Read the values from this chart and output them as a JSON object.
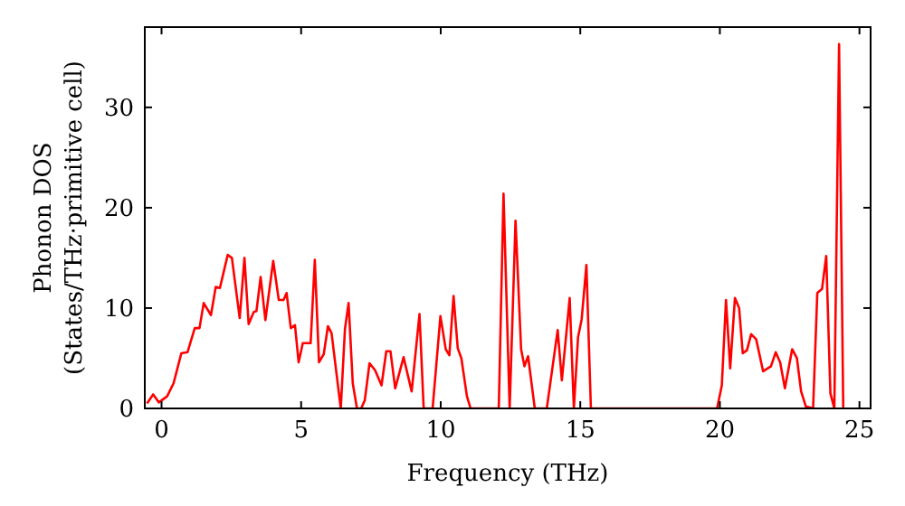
{
  "chart_data": {
    "type": "line",
    "xlabel": "Frequency (THz)",
    "ylabel": "Phonon DOS\n(States/THz·primitive cell)",
    "xlim": [
      -0.6,
      25.4
    ],
    "ylim": [
      0,
      38
    ],
    "xticks": [
      0,
      5,
      10,
      15,
      20,
      25
    ],
    "yticks": [
      0,
      10,
      20,
      30
    ],
    "grid": false,
    "series": [
      {
        "color": "#ff0000",
        "x": [
          -0.52,
          -0.3,
          -0.1,
          0.2,
          0.43,
          0.71,
          0.93,
          1.19,
          1.36,
          1.51,
          1.77,
          1.94,
          2.09,
          2.37,
          2.52,
          2.8,
          2.97,
          3.12,
          3.3,
          3.4,
          3.55,
          3.72,
          4.0,
          4.2,
          4.37,
          4.48,
          4.63,
          4.78,
          4.91,
          5.06,
          5.34,
          5.49,
          5.64,
          5.81,
          5.96,
          6.09,
          6.42,
          6.57,
          6.7,
          6.85,
          7.0,
          7.15,
          7.28,
          7.45,
          7.65,
          7.88,
          8.05,
          8.2,
          8.37,
          8.67,
          8.96,
          9.24,
          9.39,
          9.71,
          9.99,
          10.18,
          10.31,
          10.46,
          10.61,
          10.74,
          10.94,
          11.07,
          12.08,
          12.25,
          12.47,
          12.68,
          12.88,
          13.0,
          13.13,
          13.37,
          13.8,
          14.19,
          14.34,
          14.62,
          14.77,
          14.92,
          15.05,
          15.22,
          15.38,
          19.9,
          20.07,
          20.22,
          20.37,
          20.54,
          20.69,
          20.82,
          20.97,
          21.12,
          21.3,
          21.55,
          21.83,
          22.0,
          22.16,
          22.33,
          22.59,
          22.76,
          22.91,
          23.08,
          23.34,
          23.49,
          23.66,
          23.81,
          23.96,
          24.1,
          24.27,
          24.42
        ],
        "values": [
          0.5,
          1.4,
          0.6,
          1.2,
          2.5,
          5.5,
          5.6,
          8.0,
          8.0,
          10.5,
          9.3,
          12.1,
          12.0,
          15.3,
          15.0,
          9.0,
          15.0,
          8.4,
          9.6,
          9.7,
          13.1,
          8.8,
          14.7,
          10.8,
          10.8,
          11.5,
          8.0,
          8.3,
          4.6,
          6.5,
          6.5,
          14.8,
          4.6,
          5.4,
          8.2,
          7.5,
          0,
          7.9,
          10.5,
          2.5,
          0,
          0,
          0.8,
          4.5,
          3.8,
          2.3,
          5.7,
          5.7,
          2.0,
          5.1,
          1.7,
          9.4,
          0,
          0,
          9.2,
          5.9,
          5.3,
          11.2,
          6.0,
          5.0,
          1.2,
          0,
          0,
          21.4,
          0,
          18.7,
          5.9,
          4.2,
          5.2,
          0,
          0,
          7.8,
          2.8,
          11.0,
          0,
          7.1,
          8.9,
          14.3,
          0,
          0,
          2.3,
          10.8,
          4.0,
          11.0,
          10.0,
          5.5,
          5.8,
          7.4,
          6.9,
          3.7,
          4.2,
          5.6,
          4.6,
          2.0,
          5.9,
          5.0,
          1.7,
          0.2,
          0,
          11.5,
          11.9,
          15.2,
          1.5,
          0,
          36.3,
          0
        ]
      }
    ]
  }
}
